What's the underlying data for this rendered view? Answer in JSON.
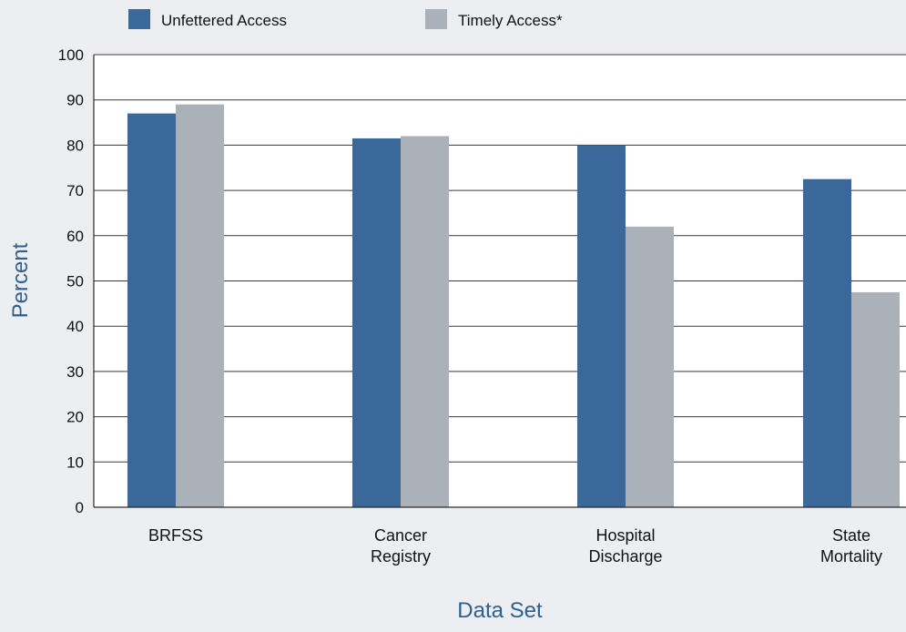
{
  "chart_data": {
    "type": "bar",
    "xlabel": "Data Set",
    "ylabel": "Percent",
    "ylim": [
      0,
      100
    ],
    "yticks": [
      0,
      10,
      20,
      30,
      40,
      50,
      60,
      70,
      80,
      90,
      100
    ],
    "categories": [
      [
        "BRFSS"
      ],
      [
        "Cancer",
        "Registry"
      ],
      [
        "Hospital",
        "Discharge"
      ],
      [
        "State",
        "Mortality"
      ]
    ],
    "series": [
      {
        "name": "Unfettered Access",
        "color": "#3b689b",
        "values": [
          87,
          81.5,
          80,
          72.5
        ]
      },
      {
        "name": "Timely Access*",
        "color": "#abb1b8",
        "values": [
          89,
          82,
          62,
          47.5
        ]
      }
    ],
    "grid": true,
    "legend_position": "top"
  }
}
